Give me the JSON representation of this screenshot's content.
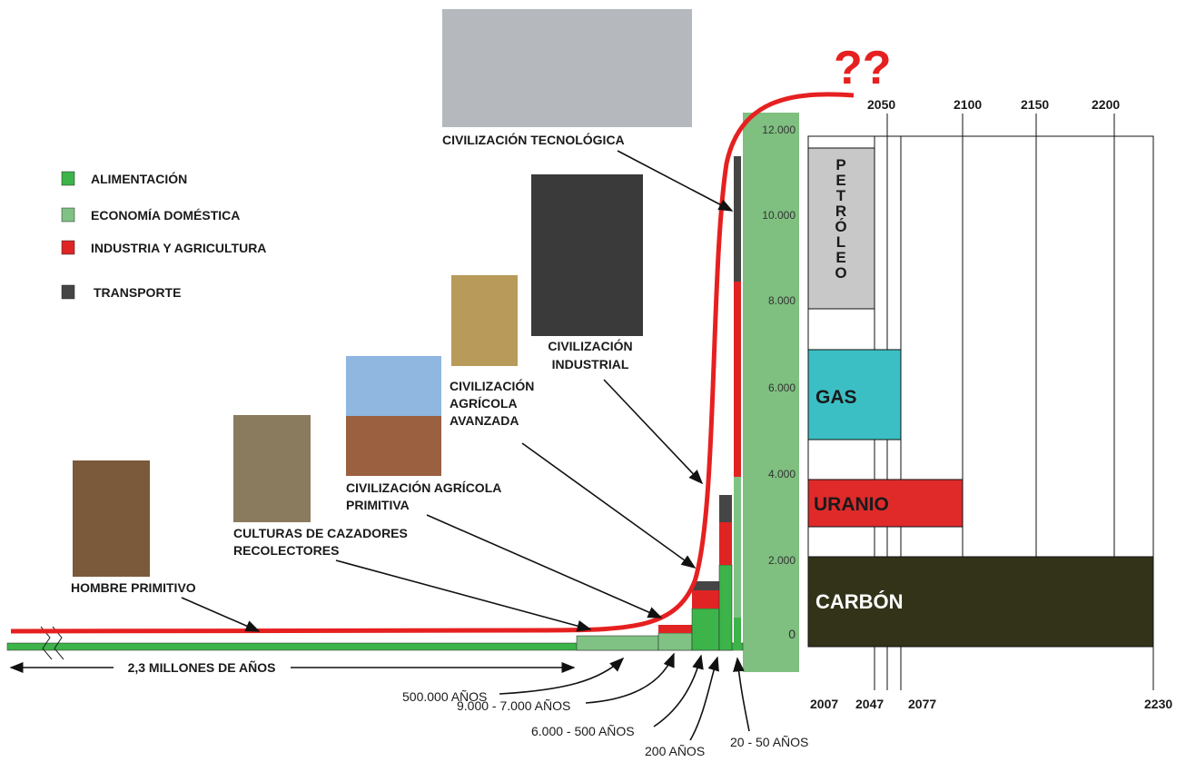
{
  "annotation": "??",
  "legend": [
    {
      "label": "ALIMENTACIÓN",
      "color": "#3cb44a"
    },
    {
      "label": "ECONOMÍA DOMÉSTICA",
      "color": "#7fc283"
    },
    {
      "label": "INDUSTRIA Y AGRICULTURA",
      "color": "#e02424"
    },
    {
      "label": "TRANSPORTE",
      "color": "#454545"
    }
  ],
  "stages": [
    {
      "lines": [
        "HOMBRE PRIMITIVO"
      ]
    },
    {
      "lines": [
        "CULTURAS DE CAZADORES",
        "RECOLECTORES"
      ]
    },
    {
      "lines": [
        "CIVILIZACIÓN AGRÍCOLA",
        "PRIMITIVA"
      ]
    },
    {
      "lines": [
        "CIVILIZACIÓN",
        "AGRÍCOLA",
        "AVANZADA"
      ]
    },
    {
      "lines": [
        "CIVILIZACIÓN",
        "INDUSTRIAL"
      ]
    },
    {
      "lines": [
        "CIVILIZACIÓN TECNOLÓGICA"
      ]
    }
  ],
  "periods": [
    "2,3 MILLONES DE AÑOS",
    "500.000 AÑOS",
    "9.000 - 7.000 AÑOS",
    "6.000 - 500 AÑOS",
    "200 AÑOS",
    "20 - 50 AÑOS"
  ],
  "energy_axis": [
    "12.000",
    "10.000",
    "8.000",
    "6.000",
    "4.000",
    "2.000",
    "0"
  ],
  "years_top": [
    "2050",
    "2100",
    "2150",
    "2200"
  ],
  "years_bottom": [
    "2007",
    "2047",
    "2077",
    "2230"
  ],
  "resources": [
    {
      "label": "PETRÓLEO",
      "color": "#c8c8c8"
    },
    {
      "label": "GAS",
      "color": "#3bbfc4"
    },
    {
      "label": "URANIO",
      "color": "#e02a2a"
    },
    {
      "label": "CARBÓN",
      "color": "#33331a"
    }
  ]
}
